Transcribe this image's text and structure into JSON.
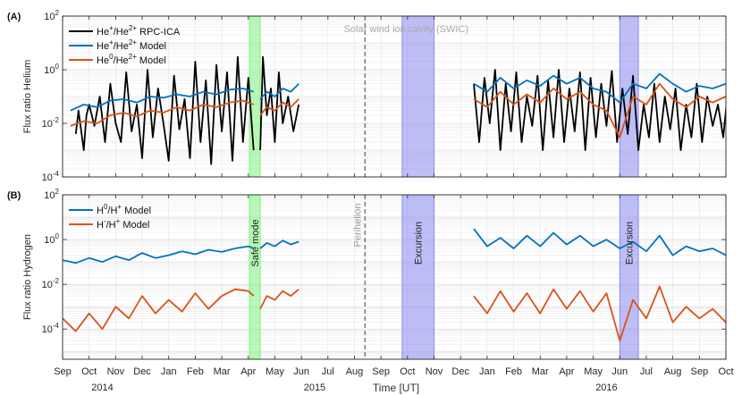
{
  "figure": {
    "time_axis_label": "Time [UT]"
  },
  "chart_data": [
    {
      "panel_label": "(A)",
      "type": "line",
      "ylabel": "Flux ratio Helium",
      "yscale": "log",
      "ylim": [
        0.0001,
        100
      ],
      "yticks": [
        {
          "value": 100,
          "base": "10",
          "exp": "2"
        },
        {
          "value": 1,
          "base": "10",
          "exp": "0"
        },
        {
          "value": 0.01,
          "base": "10",
          "exp": "-2"
        },
        {
          "value": 0.0001,
          "base": "10",
          "exp": "-4"
        }
      ],
      "xlim": [
        "2014-09-01",
        "2016-10-01"
      ],
      "x_months": [
        "Sep",
        "Oct",
        "Nov",
        "Dec",
        "Jan",
        "Feb",
        "Mar",
        "Apr",
        "May",
        "Jun",
        "Jul",
        "Aug",
        "Sep",
        "Oct",
        "Nov",
        "Dec",
        "Jan",
        "Feb",
        "Mar",
        "Apr",
        "May",
        "Jun",
        "Jul",
        "Aug",
        "Sep",
        "Oct"
      ],
      "x_years": [
        {
          "label": "2014",
          "at_month": 1.5
        },
        {
          "label": "2015",
          "at_month": 9.5
        },
        {
          "label": "2016",
          "at_month": 20.5
        }
      ],
      "series": [
        {
          "name": "He+/He2+ RPC-ICA",
          "color": "#000000",
          "legend": {
            "base1": "He",
            "sup1": "+",
            "base2": "/He",
            "sup2": "2+",
            "rest": " RPC-ICA"
          },
          "segments": [
            {
              "x": [
                0.5,
                0.6,
                0.8,
                0.9,
                1.0,
                1.2,
                1.4,
                1.6,
                1.8,
                2.0,
                2.2,
                2.4,
                2.6,
                2.8,
                3.0,
                3.2,
                3.4,
                3.6,
                3.8,
                4.0,
                4.2,
                4.4,
                4.6,
                4.8,
                5.0,
                5.2,
                5.4,
                5.6,
                5.8,
                6.0,
                6.2,
                6.4,
                6.6,
                6.8,
                7.0,
                7.2
              ],
              "y": [
                0.004,
                0.03,
                0.001,
                0.02,
                0.05,
                0.008,
                0.1,
                0.002,
                0.3,
                0.01,
                0.002,
                0.8,
                0.005,
                0.05,
                0.0005,
                1.0,
                0.003,
                0.2,
                0.01,
                0.0004,
                0.6,
                0.006,
                0.08,
                0.0005,
                2.0,
                0.002,
                0.4,
                0.0003,
                1.5,
                0.005,
                0.8,
                0.0004,
                3.0,
                0.002,
                0.5,
                0.001
              ]
            },
            {
              "x": [
                7.45,
                7.55,
                7.7,
                7.85,
                8.0,
                8.15,
                8.3,
                8.5,
                8.7,
                8.9
              ],
              "y": [
                0.001,
                3.0,
                0.02,
                0.2,
                0.002,
                0.8,
                0.01,
                0.1,
                0.005,
                0.05
              ]
            },
            {
              "x": [
                15.5,
                15.7,
                15.9,
                16.1,
                16.3,
                16.5,
                16.7,
                16.9,
                17.1,
                17.3,
                17.5,
                17.7,
                17.9,
                18.1,
                18.3,
                18.5,
                18.7,
                18.9,
                19.1,
                19.3,
                19.5,
                19.7,
                19.9,
                20.1,
                20.3,
                20.5,
                20.7,
                20.9,
                21.1,
                21.3,
                21.5,
                21.7,
                21.9,
                22.1,
                22.3,
                22.5,
                22.7,
                22.9,
                23.1,
                23.3,
                23.5,
                23.7,
                23.9,
                24.1,
                24.3,
                24.5,
                24.7,
                24.9,
                25.1,
                25.3,
                25.5,
                25.7,
                25.9
              ],
              "y": [
                0.3,
                0.002,
                0.5,
                0.01,
                1.0,
                0.001,
                0.3,
                0.005,
                0.8,
                0.002,
                0.1,
                0.008,
                0.6,
                0.001,
                0.4,
                0.003,
                1.0,
                0.002,
                0.2,
                0.005,
                0.8,
                0.001,
                0.5,
                0.003,
                0.3,
                0.008,
                0.9,
                0.002,
                0.2,
                0.004,
                0.6,
                0.001,
                0.05,
                0.003,
                0.3,
                0.002,
                0.1,
                0.006,
                0.2,
                0.001,
                0.05,
                0.003,
                0.3,
                0.002,
                0.1,
                0.008,
                0.05,
                0.003,
                0.3,
                0.01,
                0.1,
                0.005,
                0.02
              ]
            }
          ]
        },
        {
          "name": "He+/He2+ Model",
          "color": "#0072bd",
          "legend": {
            "base1": "He",
            "sup1": "+",
            "base2": "/He",
            "sup2": "2+",
            "rest": " Model"
          },
          "segments": [
            {
              "x": [
                0.3,
                0.8,
                1.3,
                1.8,
                2.3,
                2.8,
                3.3,
                3.8,
                4.3,
                4.8,
                5.3,
                5.8,
                6.3,
                6.8,
                7.2
              ],
              "y": [
                0.03,
                0.05,
                0.04,
                0.07,
                0.08,
                0.06,
                0.1,
                0.09,
                0.12,
                0.1,
                0.15,
                0.12,
                0.18,
                0.2,
                0.15
              ]
            },
            {
              "x": [
                7.45,
                7.7,
                8.0,
                8.3,
                8.6,
                8.9
              ],
              "y": [
                0.08,
                0.15,
                0.1,
                0.2,
                0.15,
                0.3
              ]
            },
            {
              "x": [
                15.5,
                16.0,
                16.5,
                17.0,
                17.5,
                18.0,
                18.5,
                19.0,
                19.5,
                20.0,
                20.5,
                21.0,
                21.5,
                22.0,
                22.5,
                23.0,
                23.5,
                24.0,
                24.5,
                25.0,
                25.5,
                25.9
              ],
              "y": [
                0.3,
                0.15,
                0.5,
                0.2,
                0.4,
                0.25,
                0.6,
                0.3,
                0.5,
                0.2,
                0.15,
                0.06,
                0.3,
                0.2,
                0.7,
                0.3,
                0.15,
                0.25,
                0.2,
                0.3,
                0.2,
                0.25
              ]
            }
          ]
        },
        {
          "name": "He0/He2+ Model",
          "color": "#d95319",
          "legend": {
            "base1": "He",
            "sup1": "0",
            "base2": "/He",
            "sup2": "2+",
            "rest": " Model"
          },
          "segments": [
            {
              "x": [
                0.3,
                0.8,
                1.3,
                1.8,
                2.3,
                2.8,
                3.3,
                3.8,
                4.3,
                4.8,
                5.3,
                5.8,
                6.3,
                6.8,
                7.2
              ],
              "y": [
                0.008,
                0.012,
                0.01,
                0.02,
                0.025,
                0.018,
                0.03,
                0.025,
                0.04,
                0.03,
                0.05,
                0.04,
                0.06,
                0.07,
                0.05
              ]
            },
            {
              "x": [
                7.45,
                7.7,
                8.0,
                8.3,
                8.6,
                8.9
              ],
              "y": [
                0.02,
                0.04,
                0.03,
                0.06,
                0.04,
                0.08
              ]
            },
            {
              "x": [
                15.5,
                16.0,
                16.5,
                17.0,
                17.5,
                18.0,
                18.5,
                19.0,
                19.5,
                20.0,
                20.5,
                21.0,
                21.5,
                22.0,
                22.5,
                23.0,
                23.5,
                24.0,
                24.5,
                25.0,
                25.5,
                25.9
              ],
              "y": [
                0.08,
                0.04,
                0.15,
                0.05,
                0.12,
                0.06,
                0.2,
                0.08,
                0.15,
                0.05,
                0.03,
                0.003,
                0.1,
                0.05,
                0.3,
                0.08,
                0.04,
                0.1,
                0.06,
                0.1,
                0.05,
                0.06
              ]
            }
          ]
        }
      ],
      "shaded_regions": [
        {
          "label": "Safe mode",
          "x_start": 7.05,
          "x_end": 7.45,
          "color": "#7df27d",
          "show_label": false
        },
        {
          "label": "Excursion",
          "x_start": 12.8,
          "x_end": 14.0,
          "color": "#8a8af2",
          "show_label": false
        },
        {
          "label": "Excursion",
          "x_start": 21.0,
          "x_end": 21.7,
          "color": "#8a8af2",
          "show_label": false
        }
      ],
      "vlines": [
        {
          "label": "Perihelion",
          "x": 11.4,
          "show_label": false
        }
      ],
      "annotations": [
        {
          "text": "Solar wind ion cavity (SWIC)",
          "x": 12.95,
          "y": 40
        }
      ]
    },
    {
      "panel_label": "(B)",
      "type": "line",
      "ylabel": "Flux ratio Hydrogen",
      "yscale": "log",
      "ylim": [
        4.47e-06,
        100
      ],
      "yticks": [
        {
          "value": 100,
          "base": "10",
          "exp": "2"
        },
        {
          "value": 1,
          "base": "10",
          "exp": "0"
        },
        {
          "value": 0.01,
          "base": "10",
          "exp": "-2"
        },
        {
          "value": 0.0001,
          "base": "10",
          "exp": "-4"
        }
      ],
      "xlim": [
        "2014-09-01",
        "2016-10-01"
      ],
      "series": [
        {
          "name": "H0/H+ Model",
          "color": "#0072bd",
          "legend": {
            "base1": "H",
            "sup1": "0",
            "base2": "/H",
            "sup2": "+",
            "rest": " Model"
          },
          "segments": [
            {
              "x": [
                0.0,
                0.5,
                1.0,
                1.5,
                2.0,
                2.5,
                3.0,
                3.5,
                4.0,
                4.5,
                5.0,
                5.5,
                6.0,
                6.5,
                7.0,
                7.2
              ],
              "y": [
                0.12,
                0.09,
                0.15,
                0.1,
                0.18,
                0.12,
                0.25,
                0.15,
                0.2,
                0.3,
                0.22,
                0.35,
                0.28,
                0.4,
                0.5,
                0.4
              ]
            },
            {
              "x": [
                7.45,
                7.7,
                8.0,
                8.3,
                8.6,
                8.9
              ],
              "y": [
                0.4,
                0.7,
                0.5,
                0.9,
                0.6,
                0.8
              ]
            },
            {
              "x": [
                15.5,
                16.0,
                16.5,
                17.0,
                17.5,
                18.0,
                18.5,
                19.0,
                19.5,
                20.0,
                20.5,
                21.0,
                21.5,
                22.0,
                22.5,
                23.0,
                23.5,
                24.0,
                24.5,
                25.0,
                25.5,
                25.9
              ],
              "y": [
                3.0,
                0.5,
                1.2,
                0.4,
                1.5,
                0.5,
                2.0,
                0.6,
                1.5,
                0.5,
                1.0,
                0.4,
                0.8,
                0.3,
                1.5,
                0.2,
                0.5,
                0.3,
                0.4,
                0.2,
                0.3,
                0.02
              ]
            }
          ]
        },
        {
          "name": "H-/H+ Model",
          "color": "#d95319",
          "legend": {
            "base1": "H",
            "sup1": "-",
            "base2": "/H",
            "sup2": "+",
            "rest": " Model"
          },
          "segments": [
            {
              "x": [
                0.0,
                0.5,
                1.0,
                1.5,
                2.0,
                2.5,
                3.0,
                3.5,
                4.0,
                4.5,
                5.0,
                5.5,
                6.0,
                6.5,
                7.0,
                7.2
              ],
              "y": [
                0.0003,
                8e-05,
                0.0005,
                0.0001,
                0.001,
                0.0003,
                0.003,
                0.0005,
                0.002,
                0.0006,
                0.004,
                0.0008,
                0.003,
                0.006,
                0.005,
                0.003
              ]
            },
            {
              "x": [
                7.45,
                7.7,
                8.0,
                8.3,
                8.6,
                8.9
              ],
              "y": [
                0.0008,
                0.003,
                0.002,
                0.005,
                0.003,
                0.006
              ]
            },
            {
              "x": [
                15.5,
                16.0,
                16.5,
                17.0,
                17.5,
                18.0,
                18.5,
                19.0,
                19.5,
                20.0,
                20.5,
                21.0,
                21.5,
                22.0,
                22.5,
                23.0,
                23.5,
                24.0,
                24.5,
                25.0,
                25.5,
                25.9
              ],
              "y": [
                0.003,
                0.0005,
                0.005,
                0.0006,
                0.004,
                0.0005,
                0.006,
                0.0008,
                0.005,
                0.0006,
                0.004,
                3e-05,
                0.002,
                0.0003,
                0.008,
                0.0002,
                0.001,
                0.0003,
                0.0008,
                0.0002,
                0.0005,
                6e-05
              ]
            }
          ]
        }
      ],
      "shaded_regions": [
        {
          "label": "Safe mode",
          "x_start": 7.05,
          "x_end": 7.45,
          "color": "#7df27d",
          "show_label": true
        },
        {
          "label": "Excursion",
          "x_start": 12.8,
          "x_end": 14.0,
          "color": "#8a8af2",
          "show_label": true
        },
        {
          "label": "Excursion",
          "x_start": 21.0,
          "x_end": 21.7,
          "color": "#8a8af2",
          "show_label": true
        }
      ],
      "vlines": [
        {
          "label": "Perihelion",
          "x": 11.4,
          "show_label": true
        }
      ],
      "annotations": []
    }
  ]
}
